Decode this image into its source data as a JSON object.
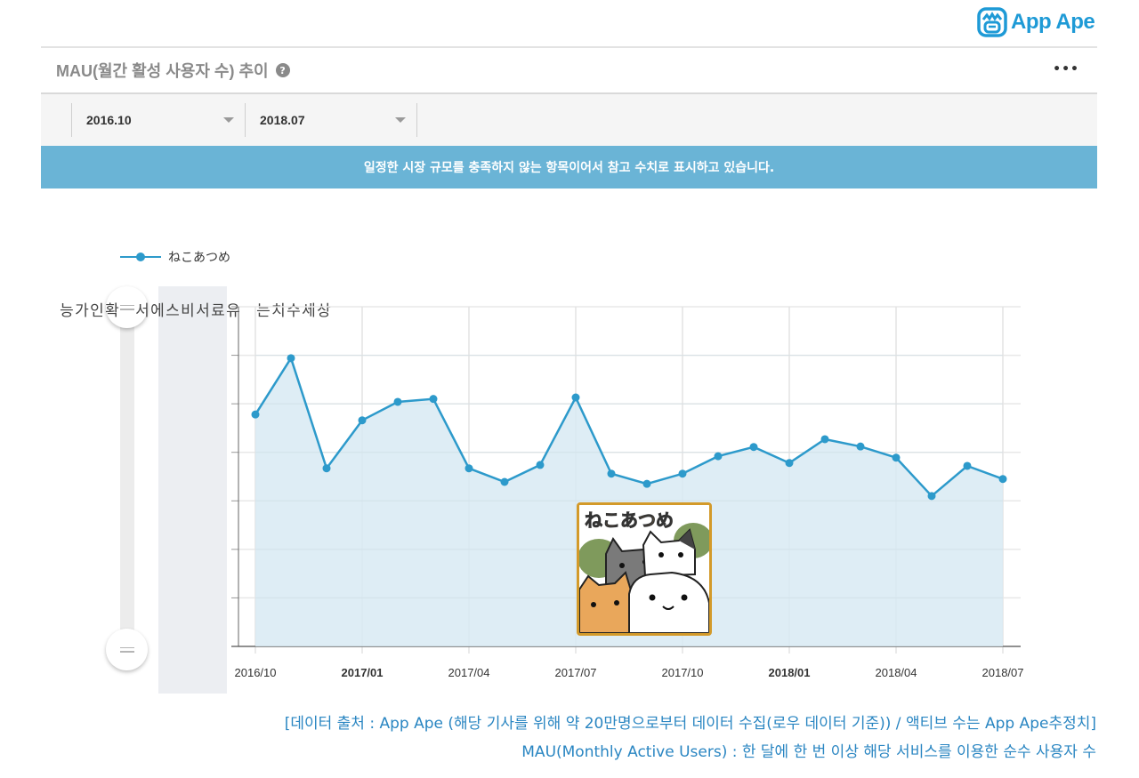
{
  "brand": {
    "name": "App Ape",
    "color": "#1e9ad6"
  },
  "header": {
    "title": "MAU(월간 활성 사용자 수) 추이",
    "help_icon": "question-circle-icon",
    "more_icon": "more-dots-icon",
    "more_label": "•••"
  },
  "filters": {
    "start": "2016.10",
    "end": "2018.07"
  },
  "notice": "일정한 시장 규모를 충족하지 않는 항목이어서 참고 수치로 표시하고 있습니다.",
  "vertical_note": "상세수치는 유료서비스에서 확인가능",
  "vertical_note_display": "상\n세\n수\n치\n는\n\n유\n료\n서\n비\n스\n에\n서\n\n확\n인\n가\n능",
  "legend": {
    "series_label": "ねこあつめ"
  },
  "colors": {
    "line": "#2d9acb",
    "area": "#d8eaf3",
    "notice_bg": "#6ab4d6",
    "footer_text": "#2a86c2"
  },
  "footer": {
    "line1": "[데이터 출처 : App Ape (해당 기사를 위해 약 20만명으로부터 데이터 수집(로우 데이터 기준)) / 액티브 수는 App Ape추정치]",
    "line2": "MAU(Monthly Active Users) : 한 달에 한 번 이상 해당 서비스를 이용한 순수 사용자 수"
  },
  "chart_data": {
    "type": "area",
    "title": "MAU(월간 활성 사용자 수) 추이",
    "xlabel": "",
    "ylabel": "",
    "y_axis_note": "Y-axis values hidden (relative grid units, 7 gridline intervals); 상세수치는 유료서비스에서 확인가능",
    "ylim": [
      0,
      7
    ],
    "grid": true,
    "legend_position": "top-left",
    "x": [
      "2016/10",
      "2016/11",
      "2016/12",
      "2017/01",
      "2017/02",
      "2017/03",
      "2017/04",
      "2017/05",
      "2017/06",
      "2017/07",
      "2017/08",
      "2017/09",
      "2017/10",
      "2017/11",
      "2017/12",
      "2018/01",
      "2018/02",
      "2018/03",
      "2018/04",
      "2018/05",
      "2018/06",
      "2018/07"
    ],
    "x_tick_labels": [
      "2016/10",
      "2017/01",
      "2017/04",
      "2017/07",
      "2017/10",
      "2018/01",
      "2018/04",
      "2018/07"
    ],
    "x_tick_bold": [
      "2017/01",
      "2018/01"
    ],
    "series": [
      {
        "name": "ねこあつめ",
        "values": [
          4.78,
          5.94,
          3.67,
          4.66,
          5.04,
          5.1,
          3.67,
          3.39,
          3.74,
          5.13,
          3.56,
          3.35,
          3.56,
          3.92,
          4.11,
          3.78,
          4.27,
          4.12,
          3.89,
          3.1,
          3.72,
          3.45
        ]
      }
    ]
  }
}
